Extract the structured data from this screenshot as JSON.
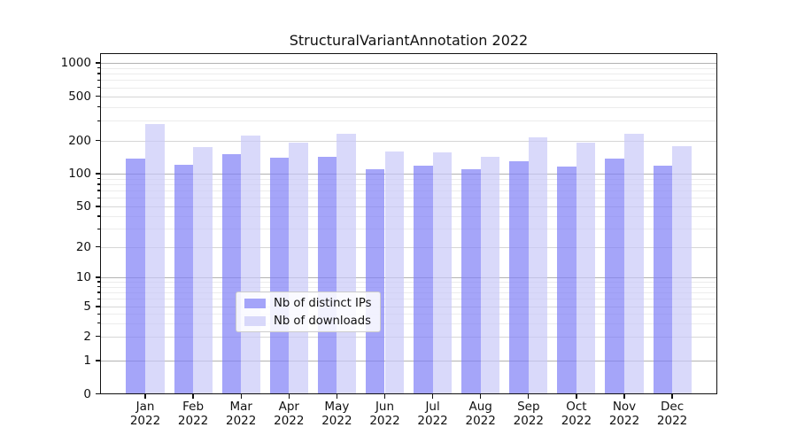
{
  "title": "StructuralVariantAnnotation 2022",
  "colors": {
    "distinct_ips": "rgba(127,127,247,0.7)",
    "downloads": "rgba(201,201,248,0.7)",
    "grid_major": "#b3b3b3",
    "grid_mid": "#d6d6d6",
    "grid_minor": "#ececec",
    "axis": "#111111"
  },
  "y_axis": {
    "ticks": [
      {
        "value": 1000,
        "label": "1000"
      },
      {
        "value": 500,
        "label": "500"
      },
      {
        "value": 200,
        "label": "200"
      },
      {
        "value": 100,
        "label": "100"
      },
      {
        "value": 50,
        "label": "50"
      },
      {
        "value": 20,
        "label": "20"
      },
      {
        "value": 10,
        "label": "10"
      },
      {
        "value": 5,
        "label": "5"
      },
      {
        "value": 2,
        "label": "2"
      },
      {
        "value": 1,
        "label": "1"
      },
      {
        "value": 0,
        "label": "0"
      }
    ],
    "minor_gridline_values": [
      3,
      4,
      6,
      7,
      8,
      9,
      30,
      40,
      60,
      70,
      80,
      90,
      300,
      400,
      600,
      700,
      800,
      900
    ]
  },
  "x_axis": {
    "year": "2022",
    "months": [
      "Jan",
      "Feb",
      "Mar",
      "Apr",
      "May",
      "Jun",
      "Jul",
      "Aug",
      "Sep",
      "Oct",
      "Nov",
      "Dec"
    ]
  },
  "legend": {
    "entries": [
      {
        "label": "Nb of distinct IPs",
        "color_key": "distinct_ips"
      },
      {
        "label": "Nb of downloads",
        "color_key": "downloads"
      }
    ]
  },
  "chart_data": {
    "type": "bar",
    "title": "StructuralVariantAnnotation 2022",
    "categories": [
      "Jan 2022",
      "Feb 2022",
      "Mar 2022",
      "Apr 2022",
      "May 2022",
      "Jun 2022",
      "Jul 2022",
      "Aug 2022",
      "Sep 2022",
      "Oct 2022",
      "Nov 2022",
      "Dec 2022"
    ],
    "series": [
      {
        "name": "Nb of distinct IPs",
        "values": [
          137,
          120,
          151,
          140,
          143,
          109,
          119,
          109,
          129,
          115,
          138,
          119
        ]
      },
      {
        "name": "Nb of downloads",
        "values": [
          281,
          174,
          222,
          192,
          230,
          158,
          156,
          143,
          214,
          192,
          230,
          179
        ]
      }
    ],
    "xlabel": "",
    "ylabel": "",
    "yscale": "symlog-like",
    "ytick_values": [
      0,
      1,
      2,
      5,
      10,
      20,
      50,
      100,
      200,
      500,
      1000
    ],
    "ylim": [
      0,
      1200
    ],
    "grid": "on",
    "legend_position": "lower center inside plot"
  }
}
